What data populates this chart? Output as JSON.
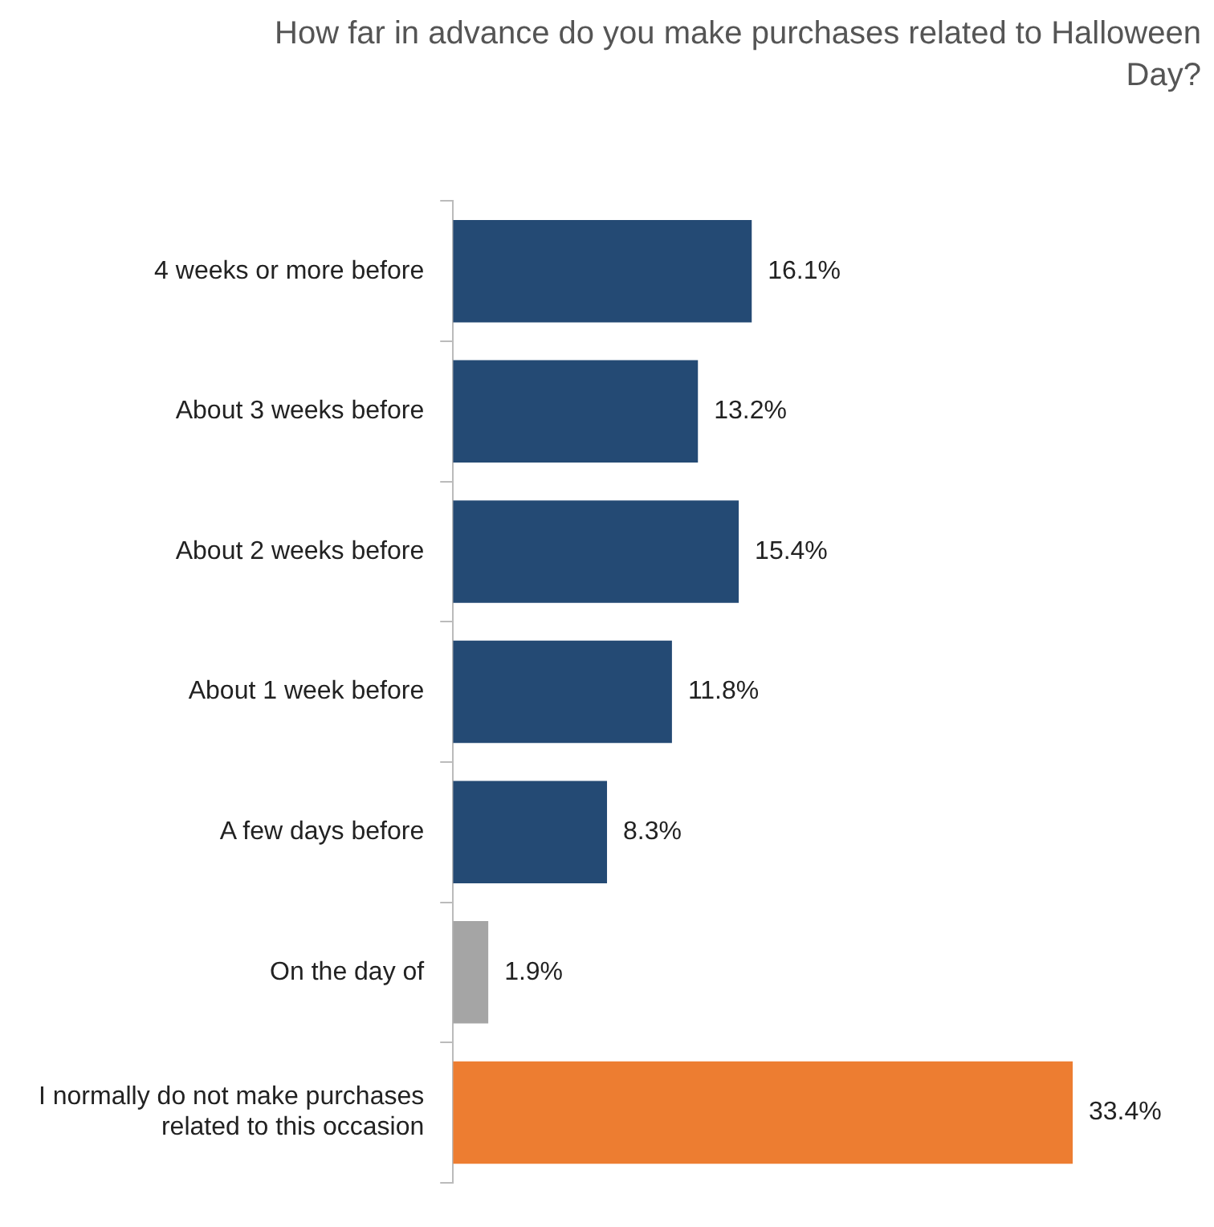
{
  "chart_data": {
    "type": "bar",
    "orientation": "horizontal",
    "title": "How far in advance do you make purchases related to Halloween Day?",
    "categories": [
      "4 weeks or more before",
      "About 3 weeks before",
      "About 2 weeks before",
      "About 1 week before",
      "A few days before",
      "On the day of",
      "I normally do not make purchases related to this occasion"
    ],
    "values": [
      16.1,
      13.2,
      15.4,
      11.8,
      8.3,
      1.9,
      33.4
    ],
    "colors": [
      "#244a74",
      "#244a74",
      "#244a74",
      "#244a74",
      "#244a74",
      "#a5a5a5",
      "#ed7d31"
    ],
    "value_labels": [
      "16.1%",
      "13.2%",
      "15.4%",
      "11.8%",
      "8.3%",
      "1.9%",
      "33.4%"
    ],
    "legend": false,
    "grid": false
  }
}
